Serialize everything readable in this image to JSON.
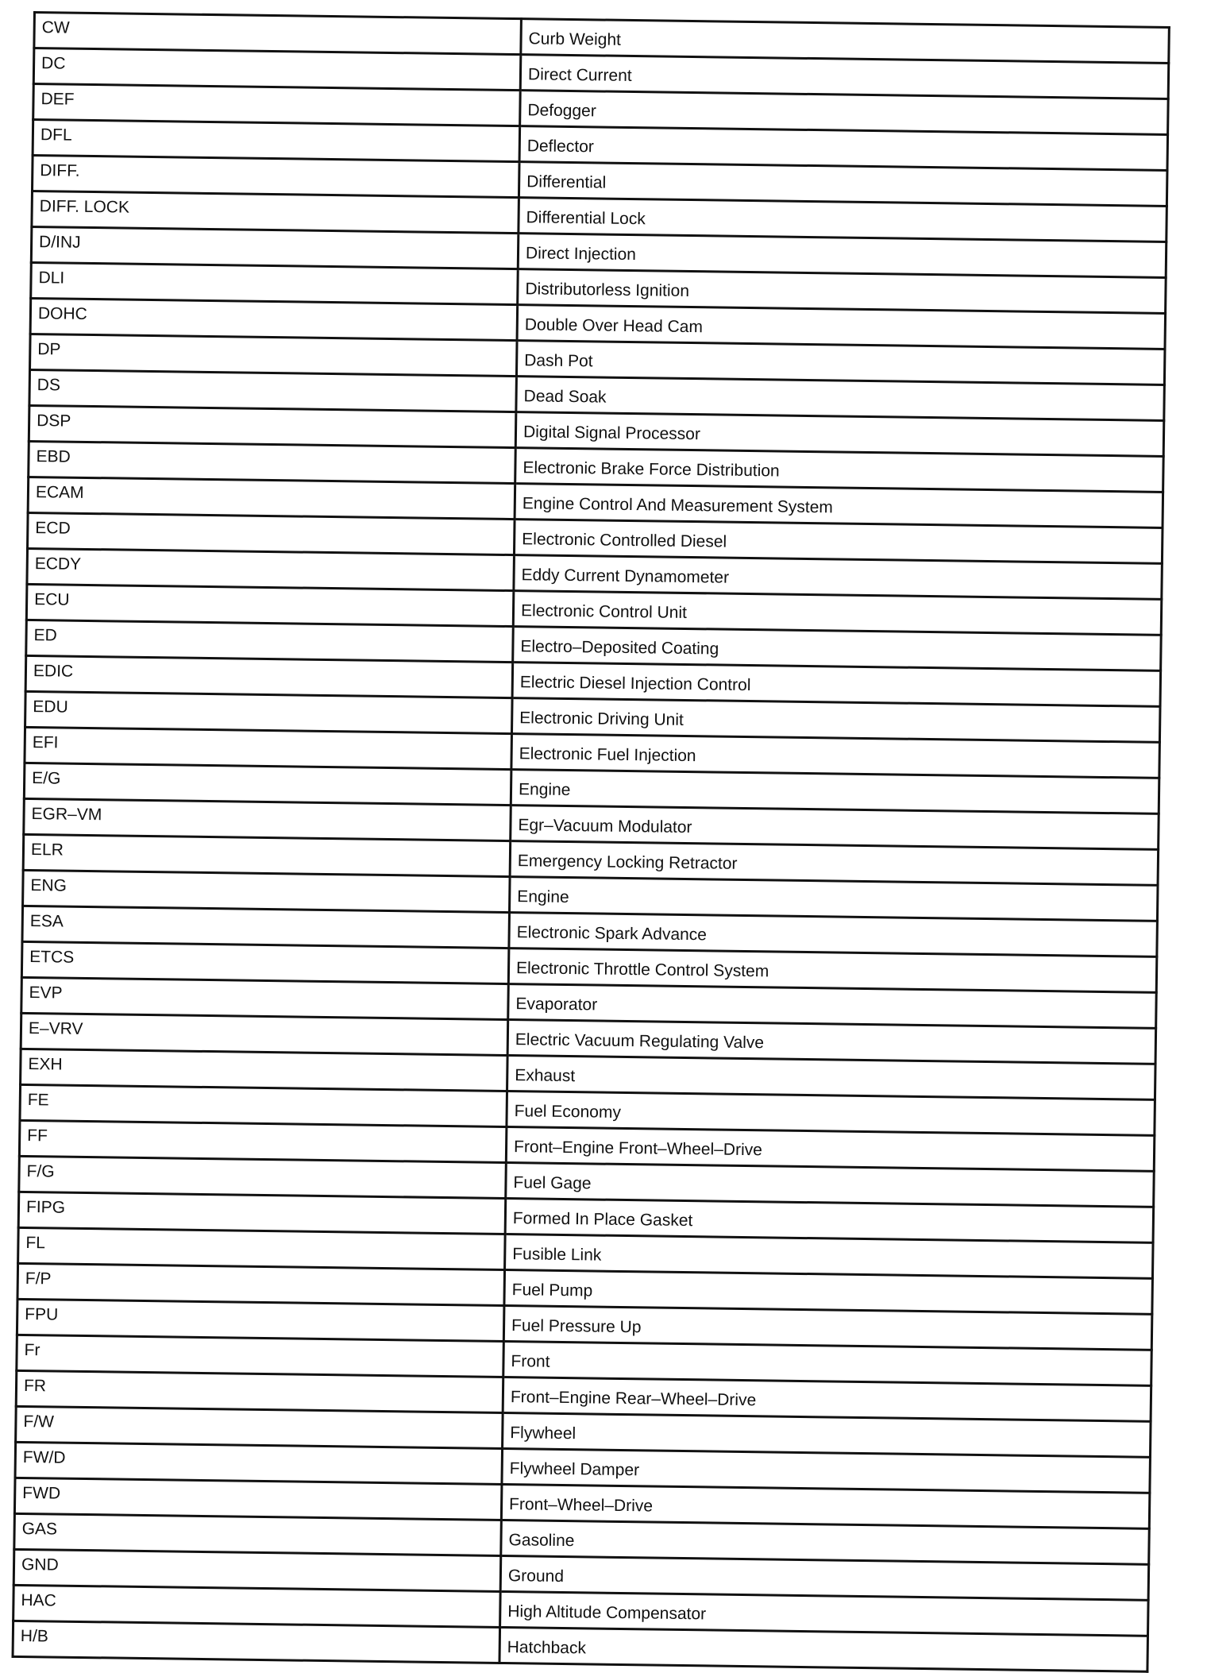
{
  "rows": [
    {
      "abbr": "CW",
      "meaning": "Curb Weight"
    },
    {
      "abbr": "DC",
      "meaning": "Direct Current"
    },
    {
      "abbr": "DEF",
      "meaning": "Defogger"
    },
    {
      "abbr": "DFL",
      "meaning": "Deflector"
    },
    {
      "abbr": "DIFF.",
      "meaning": "Differential"
    },
    {
      "abbr": "DIFF. LOCK",
      "meaning": "Differential Lock"
    },
    {
      "abbr": "D/INJ",
      "meaning": "Direct Injection"
    },
    {
      "abbr": "DLI",
      "meaning": "Distributorless Ignition"
    },
    {
      "abbr": "DOHC",
      "meaning": "Double Over Head Cam"
    },
    {
      "abbr": "DP",
      "meaning": "Dash Pot"
    },
    {
      "abbr": "DS",
      "meaning": "Dead Soak"
    },
    {
      "abbr": "DSP",
      "meaning": "Digital Signal Processor"
    },
    {
      "abbr": "EBD",
      "meaning": "Electronic Brake Force Distribution"
    },
    {
      "abbr": "ECAM",
      "meaning": "Engine Control And Measurement System"
    },
    {
      "abbr": "ECD",
      "meaning": "Electronic Controlled Diesel"
    },
    {
      "abbr": "ECDY",
      "meaning": "Eddy Current Dynamometer"
    },
    {
      "abbr": "ECU",
      "meaning": "Electronic Control Unit"
    },
    {
      "abbr": "ED",
      "meaning": "Electro–Deposited Coating"
    },
    {
      "abbr": "EDIC",
      "meaning": "Electric Diesel Injection Control"
    },
    {
      "abbr": "EDU",
      "meaning": "Electronic Driving Unit"
    },
    {
      "abbr": "EFI",
      "meaning": "Electronic Fuel Injection"
    },
    {
      "abbr": "E/G",
      "meaning": "Engine"
    },
    {
      "abbr": "EGR–VM",
      "meaning": "Egr–Vacuum Modulator"
    },
    {
      "abbr": "ELR",
      "meaning": "Emergency Locking Retractor"
    },
    {
      "abbr": "ENG",
      "meaning": "Engine"
    },
    {
      "abbr": "ESA",
      "meaning": "Electronic Spark Advance"
    },
    {
      "abbr": "ETCS",
      "meaning": "Electronic Throttle Control System"
    },
    {
      "abbr": "EVP",
      "meaning": "Evaporator"
    },
    {
      "abbr": "E–VRV",
      "meaning": "Electric Vacuum Regulating Valve"
    },
    {
      "abbr": "EXH",
      "meaning": "Exhaust"
    },
    {
      "abbr": "FE",
      "meaning": "Fuel Economy"
    },
    {
      "abbr": "FF",
      "meaning": "Front–Engine Front–Wheel–Drive"
    },
    {
      "abbr": "F/G",
      "meaning": "Fuel Gage"
    },
    {
      "abbr": "FIPG",
      "meaning": "Formed In Place Gasket"
    },
    {
      "abbr": "FL",
      "meaning": "Fusible Link"
    },
    {
      "abbr": "F/P",
      "meaning": "Fuel Pump"
    },
    {
      "abbr": "FPU",
      "meaning": "Fuel Pressure Up"
    },
    {
      "abbr": "Fr",
      "meaning": "Front"
    },
    {
      "abbr": "FR",
      "meaning": "Front–Engine Rear–Wheel–Drive"
    },
    {
      "abbr": "F/W",
      "meaning": "Flywheel"
    },
    {
      "abbr": "FW/D",
      "meaning": "Flywheel Damper"
    },
    {
      "abbr": "FWD",
      "meaning": "Front–Wheel–Drive"
    },
    {
      "abbr": "GAS",
      "meaning": "Gasoline"
    },
    {
      "abbr": "GND",
      "meaning": "Ground"
    },
    {
      "abbr": "HAC",
      "meaning": "High Altitude Compensator"
    },
    {
      "abbr": "H/B",
      "meaning": "Hatchback"
    }
  ]
}
